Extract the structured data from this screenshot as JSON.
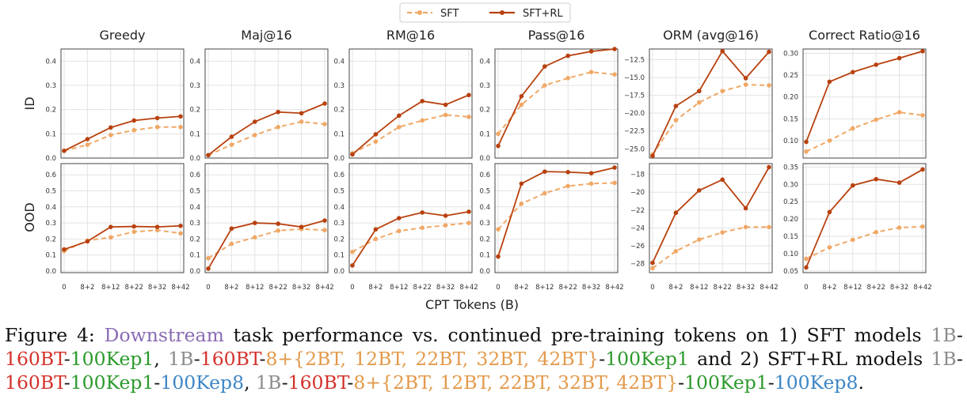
{
  "legend": {
    "sft": "SFT",
    "sftrl": "SFT+RL"
  },
  "colors": {
    "sft": "#f0a866",
    "sftrl": "#b8410e",
    "grid": "#e3e3e3",
    "axis": "#333333"
  },
  "x_title": "CPT Tokens (B)",
  "row_labels": [
    "ID",
    "OOD"
  ],
  "chart_data": [
    {
      "type": "line",
      "title": "Greedy",
      "row": "ID",
      "categories": [
        "0",
        "8+2",
        "8+12",
        "8+22",
        "8+32",
        "8+42"
      ],
      "ylim": [
        0,
        0.45
      ],
      "yticks": [
        0.0,
        0.1,
        0.2,
        0.3,
        0.4
      ],
      "ytick_labels": [
        "0.0",
        "0.1",
        "0.2",
        "0.3",
        "0.4"
      ],
      "series": [
        {
          "name": "SFT",
          "values": [
            0.03,
            0.055,
            0.095,
            0.115,
            0.128,
            0.128
          ]
        },
        {
          "name": "SFT+RL",
          "values": [
            0.03,
            0.078,
            0.126,
            0.155,
            0.165,
            0.172
          ]
        }
      ]
    },
    {
      "type": "line",
      "title": "Maj@16",
      "row": "ID",
      "categories": [
        "0",
        "8+2",
        "8+12",
        "8+22",
        "8+32",
        "8+42"
      ],
      "ylim": [
        0,
        0.45
      ],
      "yticks": [
        0.0,
        0.1,
        0.2,
        0.3,
        0.4
      ],
      "ytick_labels": [
        "0.0",
        "0.1",
        "0.2",
        "0.3",
        "0.4"
      ],
      "series": [
        {
          "name": "SFT",
          "values": [
            0.012,
            0.055,
            0.095,
            0.128,
            0.15,
            0.14
          ]
        },
        {
          "name": "SFT+RL",
          "values": [
            0.012,
            0.088,
            0.15,
            0.19,
            0.185,
            0.225
          ]
        }
      ]
    },
    {
      "type": "line",
      "title": "RM@16",
      "row": "ID",
      "categories": [
        "0",
        "8+2",
        "8+12",
        "8+22",
        "8+32",
        "8+42"
      ],
      "ylim": [
        0,
        0.45
      ],
      "yticks": [
        0.0,
        0.1,
        0.2,
        0.3,
        0.4
      ],
      "ytick_labels": [
        "0.0",
        "0.1",
        "0.2",
        "0.3",
        "0.4"
      ],
      "series": [
        {
          "name": "SFT",
          "values": [
            0.02,
            0.068,
            0.128,
            0.155,
            0.178,
            0.17
          ]
        },
        {
          "name": "SFT+RL",
          "values": [
            0.015,
            0.098,
            0.175,
            0.235,
            0.22,
            0.26
          ]
        }
      ]
    },
    {
      "type": "line",
      "title": "Pass@16",
      "row": "ID",
      "categories": [
        "0",
        "8+2",
        "8+12",
        "8+22",
        "8+32",
        "8+42"
      ],
      "ylim": [
        0,
        0.45
      ],
      "yticks": [
        0.0,
        0.1,
        0.2,
        0.3,
        0.4
      ],
      "ytick_labels": [
        "0.0",
        "0.1",
        "0.2",
        "0.3",
        "0.4"
      ],
      "series": [
        {
          "name": "SFT",
          "values": [
            0.1,
            0.22,
            0.3,
            0.33,
            0.355,
            0.345
          ]
        },
        {
          "name": "SFT+RL",
          "values": [
            0.05,
            0.255,
            0.378,
            0.422,
            0.44,
            0.45
          ]
        }
      ]
    },
    {
      "type": "line",
      "title": "ORM (avg@16)",
      "row": "ID",
      "categories": [
        "0",
        "8+2",
        "8+12",
        "8+22",
        "8+32",
        "8+42"
      ],
      "ylim": [
        -26.3,
        -11.0
      ],
      "yticks": [
        -25.0,
        -22.5,
        -20.0,
        -17.5,
        -15.0,
        -12.5
      ],
      "ytick_labels": [
        "−25.0",
        "−22.5",
        "−20.0",
        "−17.5",
        "−15.0",
        "−12.5"
      ],
      "series": [
        {
          "name": "SFT",
          "values": [
            -25.8,
            -21.0,
            -18.5,
            -16.9,
            -16.0,
            -16.1
          ]
        },
        {
          "name": "SFT+RL",
          "values": [
            -26.0,
            -19.0,
            -16.9,
            -11.3,
            -15.1,
            -11.4
          ]
        }
      ]
    },
    {
      "type": "line",
      "title": "Correct Ratio@16",
      "row": "ID",
      "categories": [
        "0",
        "8+2",
        "8+12",
        "8+22",
        "8+32",
        "8+42"
      ],
      "ylim": [
        0.06,
        0.31
      ],
      "yticks": [
        0.1,
        0.15,
        0.2,
        0.25,
        0.3
      ],
      "ytick_labels": [
        "0.10",
        "0.15",
        "0.20",
        "0.25",
        "0.30"
      ],
      "series": [
        {
          "name": "SFT",
          "values": [
            0.075,
            0.1,
            0.128,
            0.148,
            0.165,
            0.158
          ]
        },
        {
          "name": "SFT+RL",
          "values": [
            0.097,
            0.235,
            0.257,
            0.274,
            0.289,
            0.305
          ]
        }
      ]
    },
    {
      "type": "line",
      "title": "",
      "row": "OOD",
      "categories": [
        "0",
        "8+2",
        "8+12",
        "8+22",
        "8+32",
        "8+42"
      ],
      "ylim": [
        -0.01,
        0.67
      ],
      "yticks": [
        0.0,
        0.1,
        0.2,
        0.3,
        0.4,
        0.5,
        0.6
      ],
      "ytick_labels": [
        "0.0",
        "0.1",
        "0.2",
        "0.3",
        "0.4",
        "0.5",
        "0.6"
      ],
      "series": [
        {
          "name": "SFT",
          "values": [
            0.125,
            0.19,
            0.21,
            0.245,
            0.255,
            0.235
          ]
        },
        {
          "name": "SFT+RL",
          "values": [
            0.135,
            0.185,
            0.275,
            0.278,
            0.275,
            0.282
          ]
        }
      ]
    },
    {
      "type": "line",
      "title": "",
      "row": "OOD",
      "categories": [
        "0",
        "8+2",
        "8+12",
        "8+22",
        "8+32",
        "8+42"
      ],
      "ylim": [
        -0.01,
        0.67
      ],
      "yticks": [
        0.0,
        0.1,
        0.2,
        0.3,
        0.4,
        0.5,
        0.6
      ],
      "ytick_labels": [
        "0.0",
        "0.1",
        "0.2",
        "0.3",
        "0.4",
        "0.5",
        "0.6"
      ],
      "series": [
        {
          "name": "SFT",
          "values": [
            0.08,
            0.17,
            0.21,
            0.252,
            0.262,
            0.255
          ]
        },
        {
          "name": "SFT+RL",
          "values": [
            0.015,
            0.265,
            0.3,
            0.295,
            0.275,
            0.315
          ]
        }
      ]
    },
    {
      "type": "line",
      "title": "",
      "row": "OOD",
      "categories": [
        "0",
        "8+2",
        "8+12",
        "8+22",
        "8+32",
        "8+42"
      ],
      "ylim": [
        -0.01,
        0.67
      ],
      "yticks": [
        0.0,
        0.1,
        0.2,
        0.3,
        0.4,
        0.5,
        0.6
      ],
      "ytick_labels": [
        "0.0",
        "0.1",
        "0.2",
        "0.3",
        "0.4",
        "0.5",
        "0.6"
      ],
      "series": [
        {
          "name": "SFT",
          "values": [
            0.12,
            0.2,
            0.25,
            0.27,
            0.285,
            0.3
          ]
        },
        {
          "name": "SFT+RL",
          "values": [
            0.035,
            0.26,
            0.33,
            0.365,
            0.345,
            0.37
          ]
        }
      ]
    },
    {
      "type": "line",
      "title": "",
      "row": "OOD",
      "categories": [
        "0",
        "8+2",
        "8+12",
        "8+22",
        "8+32",
        "8+42"
      ],
      "ylim": [
        -0.01,
        0.67
      ],
      "yticks": [
        0.0,
        0.1,
        0.2,
        0.3,
        0.4,
        0.5,
        0.6
      ],
      "ytick_labels": [
        "0.0",
        "0.1",
        "0.2",
        "0.3",
        "0.4",
        "0.5",
        "0.6"
      ],
      "series": [
        {
          "name": "SFT",
          "values": [
            0.26,
            0.42,
            0.485,
            0.53,
            0.545,
            0.55
          ]
        },
        {
          "name": "SFT+RL",
          "values": [
            0.09,
            0.545,
            0.62,
            0.617,
            0.61,
            0.645
          ]
        }
      ]
    },
    {
      "type": "line",
      "title": "",
      "row": "OOD",
      "categories": [
        "0",
        "8+2",
        "8+12",
        "8+22",
        "8+32",
        "8+42"
      ],
      "ylim": [
        -29.0,
        -16.8
      ],
      "yticks": [
        -28,
        -26,
        -24,
        -22,
        -20,
        -18
      ],
      "ytick_labels": [
        "−28",
        "−26",
        "−24",
        "−22",
        "−20",
        "−18"
      ],
      "series": [
        {
          "name": "SFT",
          "values": [
            -28.5,
            -26.6,
            -25.3,
            -24.5,
            -23.9,
            -23.9
          ]
        },
        {
          "name": "SFT+RL",
          "values": [
            -27.9,
            -22.3,
            -19.8,
            -18.6,
            -21.8,
            -17.2
          ]
        }
      ]
    },
    {
      "type": "line",
      "title": "",
      "row": "OOD",
      "categories": [
        "0",
        "8+2",
        "8+12",
        "8+22",
        "8+32",
        "8+42"
      ],
      "ylim": [
        0.045,
        0.36
      ],
      "yticks": [
        0.05,
        0.1,
        0.15,
        0.2,
        0.25,
        0.3,
        0.35
      ],
      "ytick_labels": [
        "0.05",
        "0.10",
        "0.15",
        "0.20",
        "0.25",
        "0.30",
        "0.35"
      ],
      "series": [
        {
          "name": "SFT",
          "values": [
            0.085,
            0.118,
            0.14,
            0.162,
            0.175,
            0.178
          ]
        },
        {
          "name": "SFT+RL",
          "values": [
            0.06,
            0.22,
            0.297,
            0.315,
            0.305,
            0.343
          ]
        }
      ]
    }
  ],
  "caption": {
    "figure_label": "Figure 4:",
    "downstream": "Downstream",
    "text1": " task performance vs.  continued pre-training tokens on 1) SFT models ",
    "m1a": "1B",
    "dash": "-",
    "m1b": "160BT",
    "m1c": "100Kep1",
    "comma": ", ",
    "m2d": "8+{2BT, 12BT, 22BT, 32BT, 42BT}",
    "text2": " and 2) SFT+RL models ",
    "m3e": "100Kep8",
    "end": "."
  }
}
